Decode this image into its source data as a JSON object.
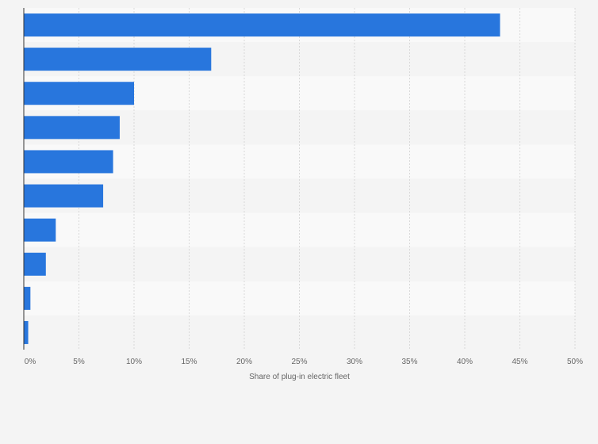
{
  "chart_data": {
    "type": "bar",
    "orientation": "horizontal",
    "categories": [
      "",
      "",
      "",
      "",
      "",
      "",
      "",
      "",
      "",
      ""
    ],
    "values": [
      43.2,
      17.0,
      10.0,
      8.7,
      8.1,
      7.2,
      2.9,
      2.0,
      0.6,
      0.4
    ],
    "title": "",
    "xlabel": "Share of plug-in electric fleet",
    "ylabel": "",
    "xlim": [
      0,
      50
    ],
    "x_ticks": [
      0,
      5,
      10,
      15,
      20,
      25,
      30,
      35,
      40,
      45,
      50
    ],
    "x_tick_labels": [
      "0%",
      "5%",
      "10%",
      "15%",
      "20%",
      "25%",
      "30%",
      "35%",
      "40%",
      "45%",
      "50%"
    ],
    "grid": true,
    "legend": "none",
    "colors": {
      "bar": "#2876dd",
      "band_odd": "#f9f9f9",
      "band_even": "#f4f4f4",
      "gridline": "#d9d9d9",
      "axis": "#333333",
      "text": "#666666"
    }
  }
}
